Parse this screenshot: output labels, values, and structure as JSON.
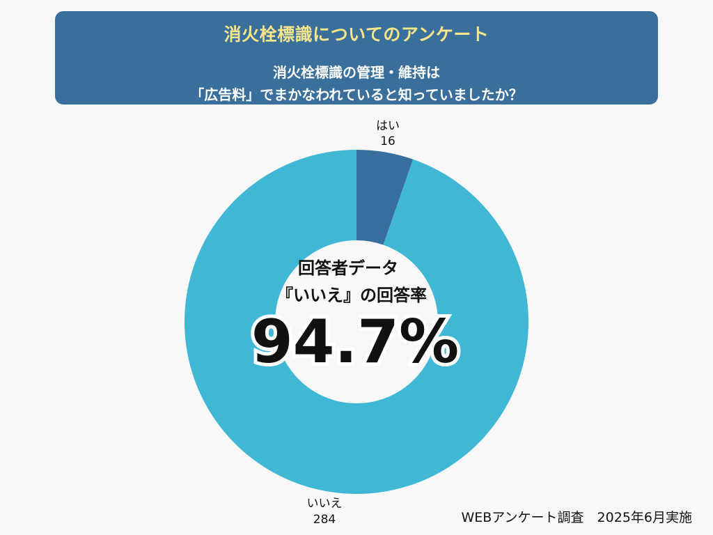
{
  "header": {
    "title": "消火栓標識についてのアンケート",
    "subtitle_line1": "消火栓標識の管理・維持は",
    "subtitle_line2": "「広告料」でまかなわれていると知っていましたか？"
  },
  "center": {
    "line1": "回答者データ",
    "line2": "『いいえ』の回答率",
    "percent": "94.7%"
  },
  "footer": {
    "note": "WEBアンケート調査　2025年6月実施"
  },
  "colors": {
    "header_bg": "#3a6f9c",
    "title": "#f7e58a",
    "slice_yes": "#386f9e",
    "slice_no": "#41b7d6"
  },
  "chart_data": {
    "type": "pie",
    "donut": true,
    "slices": [
      {
        "label": "はい",
        "value": 16,
        "color": "#386f9e"
      },
      {
        "label": "いいえ",
        "value": 284,
        "color": "#41b7d6"
      }
    ]
  }
}
